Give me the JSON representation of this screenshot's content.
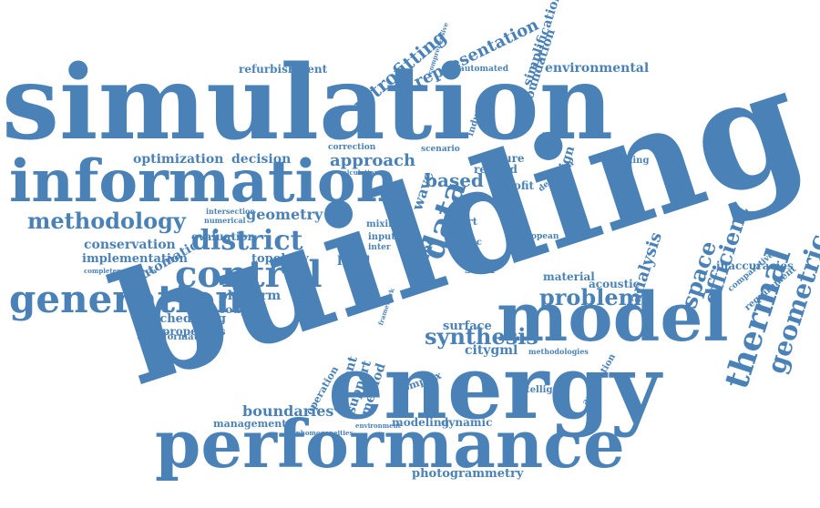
{
  "colors": {
    "word": "#4a82b7",
    "background": "#ffffff"
  },
  "words": [
    "building",
    "simulation",
    "energy",
    "performance",
    "model",
    "information",
    "generation",
    "control",
    "methodology",
    "district",
    "thermal",
    "geometric",
    "data",
    "synthesis",
    "efficient",
    "space",
    "problem",
    "analysis",
    "approach",
    "based",
    "retrofitting",
    "representation",
    "simplification",
    "foundation",
    "environmental",
    "refurbishment",
    "optimization",
    "decision",
    "conservation",
    "implementation",
    "automatic",
    "topology",
    "evaluation",
    "geometry",
    "platform",
    "scheduling",
    "properties",
    "transformation",
    "coupled",
    "level",
    "field",
    "wave",
    "time",
    "scan",
    "inaccuracies",
    "requirement",
    "comparative",
    "acoustic",
    "material",
    "surface",
    "citygml",
    "photogrammetry",
    "modeling",
    "dynamic",
    "boundaries",
    "management",
    "operation",
    "element",
    "support",
    "method",
    "complex",
    "intelligent",
    "application",
    "methodologies",
    "retrofit",
    "design",
    "detection",
    "shading",
    "measure",
    "related",
    "correction",
    "industry",
    "automated",
    "comprehensive",
    "scenario",
    "european",
    "smart",
    "mixing",
    "input",
    "inter",
    "error",
    "proc",
    "intersection",
    "numerical",
    "completenesschecks",
    "calculation",
    "framework",
    "environment",
    "inhomogeneities"
  ]
}
